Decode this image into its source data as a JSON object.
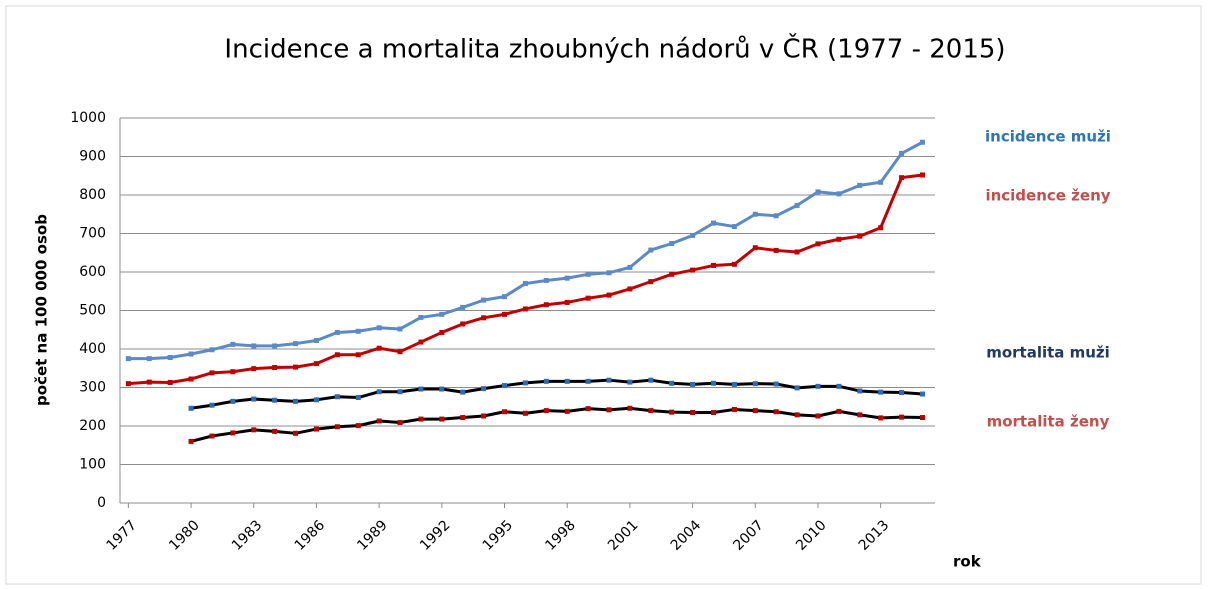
{
  "chart_data": {
    "type": "line",
    "title": "Incidence a mortalita zhoubných nádorů v ČR (1977 - 2015)",
    "xlabel": "rok",
    "ylabel": "počet na 100 000 osob",
    "x": [
      1977,
      1978,
      1979,
      1980,
      1981,
      1982,
      1983,
      1984,
      1985,
      1986,
      1987,
      1988,
      1989,
      1990,
      1991,
      1992,
      1993,
      1994,
      1995,
      1996,
      1997,
      1998,
      1999,
      2000,
      2001,
      2002,
      2003,
      2004,
      2005,
      2006,
      2007,
      2008,
      2009,
      2010,
      2011,
      2012,
      2013,
      2014,
      2015
    ],
    "xlim": [
      1976.6,
      2015.6
    ],
    "xticks": [
      1977,
      1980,
      1983,
      1986,
      1989,
      1992,
      1995,
      1998,
      2001,
      2004,
      2007,
      2010,
      2013
    ],
    "ylim": [
      0,
      1000
    ],
    "yticks": [
      0,
      100,
      200,
      300,
      400,
      500,
      600,
      700,
      800,
      900,
      1000
    ],
    "grid": true,
    "series": [
      {
        "name": "incidence muži",
        "color": "#5b8ac6",
        "marker_color": "#5b8ac6",
        "label_color": "#2e75b6",
        "values": [
          375,
          375,
          378,
          387,
          398,
          412,
          408,
          408,
          414,
          422,
          443,
          446,
          455,
          452,
          482,
          490,
          508,
          527,
          536,
          570,
          578,
          584,
          594,
          598,
          612,
          657,
          674,
          695,
          727,
          718,
          750,
          746,
          773,
          808,
          803,
          825,
          833,
          908,
          937
        ]
      },
      {
        "name": "incidence ženy",
        "color": "#c00000",
        "marker_color": "#c00000",
        "label_color": "#c0504d",
        "values": [
          310,
          314,
          313,
          322,
          338,
          341,
          349,
          352,
          353,
          362,
          385,
          385,
          402,
          393,
          418,
          443,
          465,
          481,
          490,
          504,
          515,
          521,
          532,
          540,
          556,
          575,
          594,
          605,
          617,
          620,
          663,
          656,
          652,
          673,
          685,
          693,
          715,
          845,
          852
        ]
      },
      {
        "name": "mortalita muži",
        "color": "#000000",
        "marker_color": "#2a6cb8",
        "label_color": "#1f3864",
        "values": [
          null,
          null,
          null,
          246,
          254,
          264,
          270,
          267,
          264,
          268,
          276,
          274,
          289,
          289,
          296,
          296,
          288,
          297,
          305,
          312,
          316,
          316,
          316,
          319,
          314,
          319,
          311,
          308,
          311,
          308,
          310,
          309,
          299,
          303,
          303,
          291,
          288,
          287,
          283
        ]
      },
      {
        "name": "mortalita ženy",
        "color": "#000000",
        "marker_color": "#c00000",
        "label_color": "#c0504d",
        "values": [
          null,
          null,
          null,
          160,
          174,
          182,
          190,
          186,
          181,
          192,
          198,
          201,
          213,
          209,
          218,
          218,
          222,
          226,
          237,
          233,
          240,
          238,
          245,
          242,
          246,
          240,
          236,
          235,
          235,
          243,
          240,
          237,
          229,
          226,
          238,
          229,
          221,
          223,
          222
        ]
      }
    ]
  }
}
